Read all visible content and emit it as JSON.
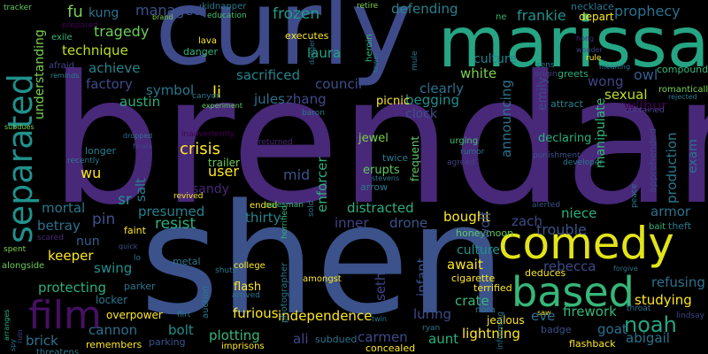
{
  "words": {
    "brendan": "brendan",
    "shen": "shen",
    "curly": "curly",
    "marissa": "marissa",
    "comedy": "comedy",
    "based": "based",
    "film": "film",
    "separated": "separated",
    "noah": "noah",
    "prophecy": "prophecy",
    "frozen": "frozen",
    "laura": "laura",
    "council": "council",
    "sacrificed": "sacrificed",
    "managed": "managed",
    "tragedy": "tragedy",
    "technique": "technique",
    "achieve": "achieve",
    "factory": "factory",
    "fu": "fu",
    "kung": "kung",
    "defending": "defending",
    "frankie": "frankie",
    "white": "white",
    "clearly": "clearly",
    "begging": "begging",
    "culture": "culture",
    "announcing": "announcing",
    "emily": "emily",
    "wong": "wong",
    "owl": "owl",
    "sexual": "sexual",
    "wilbur": "wilbur",
    "manipulate": "manipulate",
    "production": "production",
    "exam": "exam",
    "armor": "armor",
    "niece": "niece",
    "zach": "zach",
    "trouble": "trouble",
    "refusing": "refusing",
    "studying": "studying",
    "abigail": "abigail",
    "goat": "goat",
    "firework": "firework",
    "eve": "eve",
    "lightning": "lightning",
    "crate": "crate",
    "seth": "seth",
    "luring": "luring",
    "carmen": "carmen",
    "aunt": "aunt",
    "independence": "independence",
    "ali": "ali",
    "plotting": "plotting",
    "bolt": "bolt",
    "furious": "furious",
    "cannon": "cannon",
    "brick": "brick",
    "protecting": "protecting",
    "keeper": "keeper",
    "betray": "betray",
    "mortal": "mortal",
    "swing": "swing",
    "pin": "pin",
    "resist": "resist",
    "presumed": "presumed",
    "thirty": "thirty",
    "inner": "inner",
    "drone": "drone",
    "distracted": "distracted",
    "bought": "bought",
    "await": "await",
    "rebecca": "rebecca",
    "deduces": "deduces",
    "sandy": "sandy",
    "crisis": "crisis",
    "wu": "wu",
    "user": "user",
    "mid": "mid",
    "enforcer": "enforcer",
    "jules": "jules",
    "zhang": "zhang",
    "li": "li",
    "austin": "austin",
    "symbol": "symbol",
    "understanding": "understanding",
    "jewel": "jewel",
    "twice": "twice",
    "erupts": "erupts",
    "declaring": "declaring",
    "infant": "infant",
    "wolf": "wolf",
    "salt": "salt",
    "nun": "nun",
    "sr": "sr",
    "depart": "depart",
    "necklace": "necklace",
    "ne": "ne",
    "picnic": "picnic",
    "clock": "clock",
    "romantically": "romantically",
    "compound": "compound",
    "greets": "greets",
    "attract": "attract",
    "contained": "contained",
    "apprehended": "apprehended",
    "amongst": "amongst",
    "cigarette": "cigarette",
    "terrified": "terrified",
    "jealous": "jealous",
    "nora": "nora",
    "flashback": "flashback",
    "badge": "badge",
    "subdued": "subdued",
    "parker": "parker",
    "flash": "flash",
    "overpower": "overpower",
    "remembers": "remembers",
    "parking": "parking",
    "imprisons": "imprisons",
    "locker": "locker",
    "metal": "metal",
    "faint": "faint",
    "scared": "scared",
    "alongside": "alongside",
    "spent": "spent",
    "lava": "lava",
    "danger": "danger",
    "executes": "executes",
    "kidnapper": "kidnapper",
    "education": "education",
    "retire": "retire",
    "tracker": "tracker",
    "brand": "brand",
    "prepared": "prepared",
    "exile": "exile",
    "afraid": "afraid",
    "reminds": "reminds",
    "sens": "sens",
    "origin": "origin",
    "wonder": "wonder",
    "dagger": "dagger",
    "tower": "tower",
    "heroin": "heroin",
    "mule": "mule",
    "canyon": "canyon",
    "experiment": "experiment",
    "baron": "baron",
    "subdues": "subdues",
    "dropped": "dropped",
    "finale": "finale",
    "inadvertently": "inadvertently",
    "recently": "recently",
    "longer": "longer",
    "returned": "returned",
    "urging": "urging",
    "rumor": "rumor",
    "agreed": "agreed",
    "frequent": "frequent",
    "trailer": "trailer",
    "revived": "revived",
    "arrow": "arrow",
    "stevens": "stevens",
    "ended": "ended",
    "salesman": "salesman",
    "sold": "sold",
    "horrified": "horrified",
    "photographer": "photographer",
    "alerted": "alerted",
    "honeymoon": "honeymoon",
    "punishment": "punishment",
    "developer": "developer",
    "peace": "peace",
    "bait": "bait",
    "theft": "theft",
    "forgive": "forgive",
    "lindsay": "lindsay",
    "throat": "throat",
    "saw": "saw",
    "rule": "rule",
    "meaning": "meaning",
    "rejected": "rejected",
    "hong": "hong",
    "quick": "quick",
    "lo": "lo",
    "college": "college",
    "shuts": "shuts",
    "arrived": "arrived",
    "flirt": "flirt",
    "auction": "auction",
    "ryan": "ryan",
    "twin": "twin",
    "concealed": "concealed",
    "informing": "informing",
    "arranges": "arranges",
    "threatens": "threatens",
    "spy": "spy",
    "ruin": "ruin"
  }
}
